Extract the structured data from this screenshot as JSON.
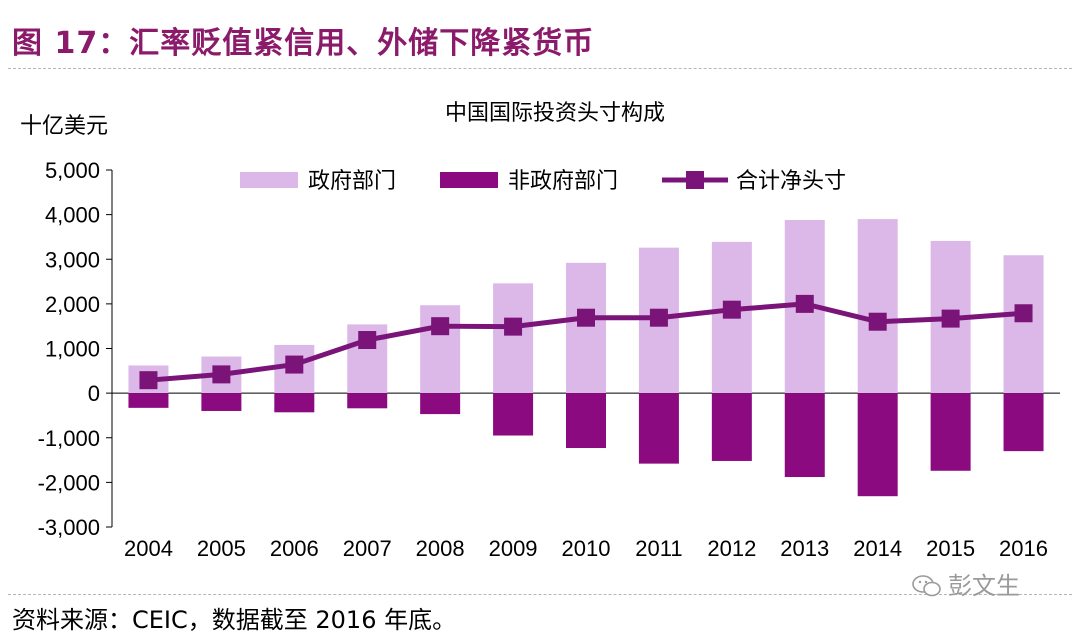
{
  "figure": {
    "title": "图 17：汇率贬值紧信用、外储下降紧货币",
    "source": "资料来源：CEIC，数据截至 2016 年底。",
    "watermark": "彭文生"
  },
  "colors": {
    "title": "#8b1a6b",
    "government": "#dcb8e8",
    "non_government": "#8c0a80",
    "net": "#7a1478"
  },
  "chart_data": {
    "type": "bar",
    "title": "中国国际投资头寸构成",
    "ylabel": "十亿美元",
    "xlabel": "",
    "ylim": [
      -3000,
      5000
    ],
    "yticks": [
      5000,
      4000,
      3000,
      2000,
      1000,
      0,
      -1000,
      -2000,
      -3000
    ],
    "ytick_labels": [
      "5,000",
      "4,000",
      "3,000",
      "2,000",
      "1,000",
      "0",
      "-1,000",
      "-2,000",
      "-3,000"
    ],
    "categories": [
      "2004",
      "2005",
      "2006",
      "2007",
      "2008",
      "2009",
      "2010",
      "2011",
      "2012",
      "2013",
      "2014",
      "2015",
      "2016"
    ],
    "legend_position": "top",
    "series": [
      {
        "name": "政府部门",
        "kind": "bar",
        "values": [
          620,
          820,
          1080,
          1540,
          1970,
          2460,
          2920,
          3260,
          3390,
          3880,
          3900,
          3410,
          3090
        ]
      },
      {
        "name": "非政府部门",
        "kind": "bar",
        "values": [
          -330,
          -400,
          -430,
          -340,
          -470,
          -950,
          -1230,
          -1580,
          -1520,
          -1880,
          -2310,
          -1740,
          -1300
        ]
      },
      {
        "name": "合计净头寸",
        "kind": "line",
        "values": [
          290,
          420,
          640,
          1190,
          1500,
          1490,
          1690,
          1690,
          1870,
          2000,
          1600,
          1670,
          1790
        ]
      }
    ]
  }
}
